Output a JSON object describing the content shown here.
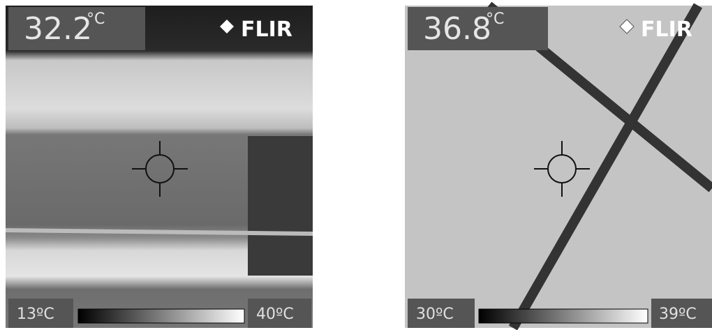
{
  "images": [
    {
      "spot_temp": "32.2",
      "spot_unit": "°C",
      "logo": "FLIR",
      "scale_min": "13ºC",
      "scale_max": "40ºC"
    },
    {
      "spot_temp": "36.8",
      "spot_unit": "°C",
      "logo": "FLIR",
      "scale_min": "30ºC",
      "scale_max": "39ºC"
    }
  ]
}
